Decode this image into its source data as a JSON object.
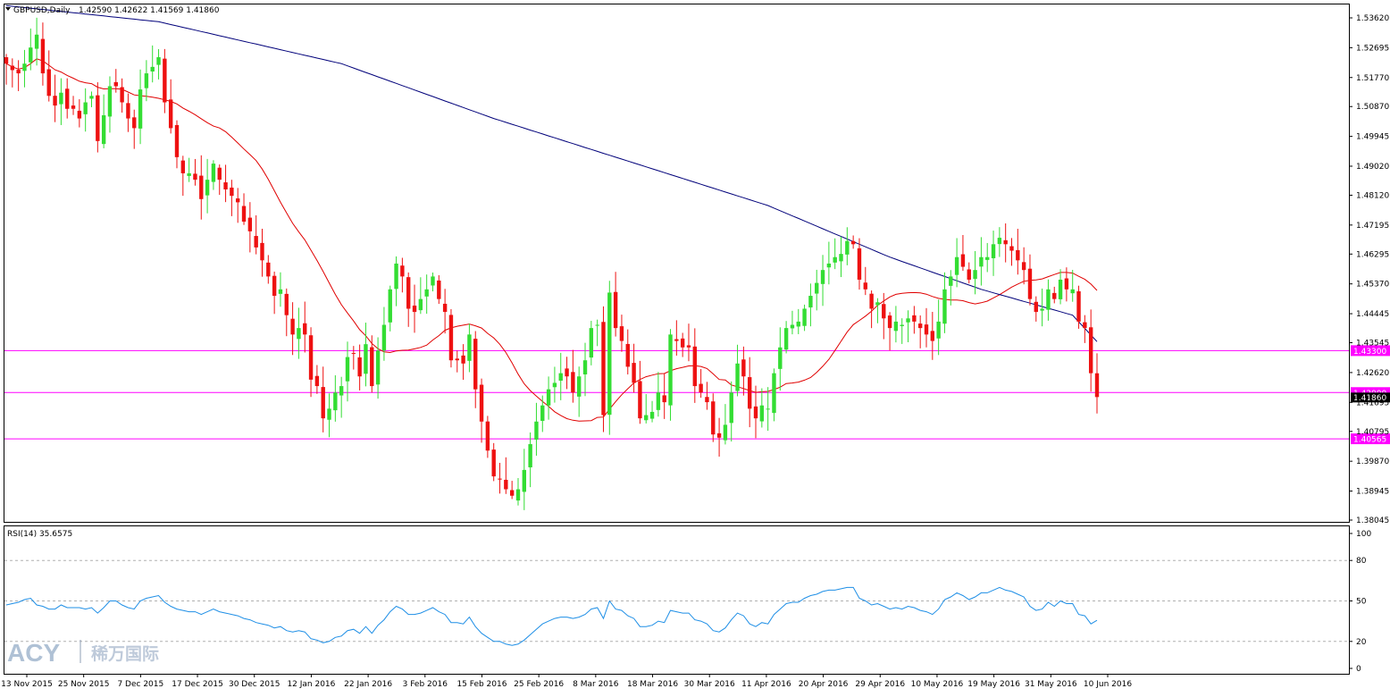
{
  "header": {
    "symbol_tf": "GBPUSD,Daily",
    "ohlc": "1.42590 1.42622 1.41569 1.41860"
  },
  "rsi_panel": {
    "label": "RSI(14) 35.6575"
  },
  "logo": {
    "brand": "ACY",
    "cn": "稀万国际"
  },
  "chart_data": [
    {
      "type": "candlestick",
      "symbol": "GBPUSD",
      "timeframe": "Daily",
      "ylim": [
        1.38045,
        1.5362
      ],
      "y_ticks": [
        "1.53620",
        "1.52695",
        "1.51770",
        "1.50870",
        "1.49945",
        "1.49020",
        "1.48120",
        "1.47195",
        "1.46295",
        "1.45370",
        "1.44445",
        "1.43545",
        "1.42620",
        "1.41695",
        "1.40795",
        "1.39870",
        "1.38945",
        "1.38045"
      ],
      "x_ticks": [
        "13 Nov 2015",
        "25 Nov 2015",
        "7 Dec 2015",
        "17 Dec 2015",
        "30 Dec 2015",
        "12 Jan 2016",
        "22 Jan 2016",
        "3 Feb 2016",
        "15 Feb 2016",
        "25 Feb 2016",
        "8 Mar 2016",
        "18 Mar 2016",
        "30 Mar 2016",
        "11 Apr 2016",
        "20 Apr 2016",
        "29 Apr 2016",
        "10 May 2016",
        "19 May 2016",
        "31 May 2016",
        "10 Jun 2016"
      ],
      "horizontal_levels": [
        {
          "value": "1.43300",
          "color": "#ff00ff"
        },
        {
          "value": "1.42000",
          "color": "#ff00ff"
        },
        {
          "value": "1.40565",
          "color": "#ff00ff"
        }
      ],
      "price_label": "1.41860",
      "series_close": [
        1.522,
        1.52,
        1.519,
        1.522,
        1.527,
        1.531,
        1.519,
        1.512,
        1.509,
        1.513,
        1.508,
        1.508,
        1.505,
        1.51,
        1.512,
        1.498,
        1.506,
        1.515,
        1.515,
        1.51,
        1.505,
        1.502,
        1.514,
        1.519,
        1.521,
        1.524,
        1.51,
        1.502,
        1.493,
        1.488,
        1.488,
        1.486,
        1.48,
        1.486,
        1.491,
        1.486,
        1.483,
        1.481,
        1.479,
        1.473,
        1.47,
        1.465,
        1.461,
        1.456,
        1.45,
        1.452,
        1.444,
        1.438,
        1.44,
        1.438,
        1.424,
        1.422,
        1.412,
        1.415,
        1.42,
        1.422,
        1.431,
        1.432,
        1.425,
        1.435,
        1.422,
        1.433,
        1.441,
        1.452,
        1.46,
        1.456,
        1.446,
        1.445,
        1.449,
        1.452,
        1.456,
        1.449,
        1.445,
        1.43,
        1.43,
        1.429,
        1.438,
        1.421,
        1.411,
        1.402,
        1.394,
        1.393,
        1.39,
        1.388,
        1.39,
        1.396,
        1.404,
        1.411,
        1.416,
        1.421,
        1.423,
        1.426,
        1.425,
        1.42,
        1.425,
        1.43,
        1.44,
        1.441,
        1.413,
        1.451,
        1.44,
        1.436,
        1.428,
        1.423,
        1.412,
        1.413,
        1.414,
        1.42,
        1.417,
        1.438,
        1.436,
        1.434,
        1.434,
        1.422,
        1.42,
        1.417,
        1.407,
        1.406,
        1.41,
        1.42,
        1.429,
        1.425,
        1.415,
        1.412,
        1.416,
        1.415,
        1.426,
        1.434,
        1.44,
        1.441,
        1.442,
        1.446,
        1.45,
        1.454,
        1.458,
        1.46,
        1.462,
        1.463,
        1.467,
        1.466,
        1.455,
        1.452,
        1.446,
        1.448,
        1.443,
        1.44,
        1.442,
        1.441,
        1.443,
        1.442,
        1.44,
        1.438,
        1.436,
        1.442,
        1.452,
        1.456,
        1.462,
        1.459,
        1.455,
        1.458,
        1.462,
        1.462,
        1.466,
        1.468,
        1.466,
        1.464,
        1.461,
        1.458,
        1.449,
        1.445,
        1.446,
        1.452,
        1.449,
        1.455,
        1.452,
        1.452,
        1.442,
        1.44,
        1.426,
        1.4186
      ],
      "overlays": [
        {
          "kind": "moving_average",
          "color": "#e00000"
        },
        {
          "kind": "moving_average",
          "color": "#00007a"
        }
      ]
    },
    {
      "type": "line",
      "indicator": "RSI(14)",
      "ylim": [
        0,
        100
      ],
      "y_ticks": [
        "100",
        "80",
        "50",
        "20",
        "0"
      ],
      "levels": [
        80,
        50,
        20
      ],
      "values": [
        47,
        48,
        49,
        51,
        52,
        47,
        46,
        44,
        44,
        47,
        45,
        45,
        45,
        44,
        45,
        41,
        45,
        50,
        50,
        47,
        45,
        44,
        50,
        52,
        53,
        54,
        49,
        46,
        44,
        43,
        42,
        42,
        40,
        42,
        44,
        42,
        41,
        40,
        39,
        37,
        36,
        34,
        33,
        32,
        30,
        31,
        28,
        27,
        28,
        27,
        22,
        21,
        19,
        20,
        23,
        24,
        28,
        29,
        26,
        31,
        26,
        32,
        36,
        42,
        46,
        44,
        40,
        40,
        41,
        43,
        45,
        42,
        40,
        34,
        34,
        33,
        38,
        31,
        26,
        23,
        20,
        20,
        18,
        17,
        18,
        21,
        25,
        29,
        33,
        35,
        37,
        38,
        38,
        37,
        38,
        40,
        44,
        45,
        37,
        50,
        44,
        43,
        39,
        37,
        31,
        31,
        32,
        35,
        34,
        43,
        42,
        41,
        41,
        36,
        35,
        33,
        28,
        27,
        30,
        36,
        41,
        39,
        33,
        31,
        34,
        33,
        40,
        44,
        48,
        49,
        49,
        52,
        54,
        55,
        57,
        58,
        58,
        59,
        60,
        60,
        52,
        50,
        47,
        48,
        46,
        44,
        45,
        44,
        46,
        45,
        43,
        42,
        40,
        44,
        51,
        53,
        56,
        54,
        51,
        53,
        56,
        56,
        58,
        60,
        58,
        57,
        55,
        53,
        46,
        43,
        44,
        49,
        46,
        50,
        48,
        48,
        40,
        39,
        33,
        35.66
      ]
    }
  ]
}
